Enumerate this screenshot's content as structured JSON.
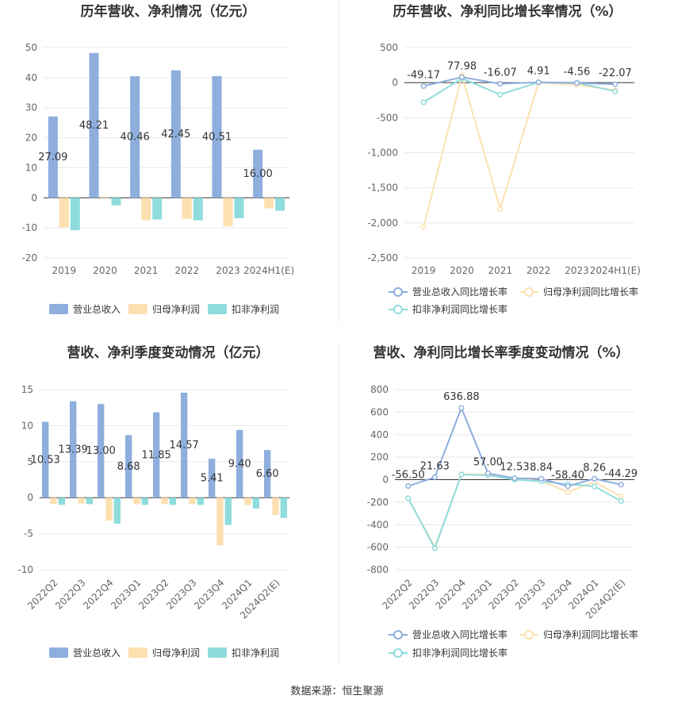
{
  "source": "数据来源：恒生聚源",
  "colors": {
    "revenue": "#8eaedd",
    "net_profit": "#fde0b0",
    "deducted": "#8fdcdc",
    "axis": "#333333",
    "grid": "#e8e8e8",
    "tick": "#666666"
  },
  "chart_data": [
    {
      "id": "annual-amount",
      "type": "bar",
      "title": "历年营收、净利情况（亿元）",
      "categories": [
        "2019",
        "2020",
        "2021",
        "2022",
        "2023",
        "2024H1(E)"
      ],
      "ylim": [
        -20,
        50
      ],
      "yticks": [
        50,
        40,
        30,
        20,
        10,
        0,
        -10,
        -20
      ],
      "series": [
        {
          "name": "营业总收入",
          "values": [
            27.09,
            48.21,
            40.46,
            42.45,
            40.51,
            16.0
          ],
          "labels": [
            "27.09",
            "48.21",
            "40.46",
            "42.45",
            "40.51",
            "16.00"
          ]
        },
        {
          "name": "归母净利润",
          "values": [
            -9.8,
            0.3,
            -7.5,
            -7.0,
            -9.5,
            -3.5
          ]
        },
        {
          "name": "扣非净利润",
          "values": [
            -10.8,
            -2.5,
            -7.2,
            -7.5,
            -6.8,
            -4.3
          ]
        }
      ]
    },
    {
      "id": "annual-growth",
      "type": "line",
      "title": "历年营收、净利同比增长率情况（%）",
      "categories": [
        "2019",
        "2020",
        "2021",
        "2022",
        "2023",
        "2024H1(E)"
      ],
      "ylim": [
        -2500,
        500
      ],
      "yticks": [
        500,
        0,
        -500,
        -1000,
        -1500,
        -2000,
        -2500
      ],
      "ytick_labels": [
        "500",
        "0",
        "-500",
        "-1,000",
        "-1,500",
        "-2,000",
        "-2,500"
      ],
      "series": [
        {
          "name": "营业总收入同比增长率",
          "values": [
            -49.17,
            77.98,
            -16.07,
            4.91,
            -4.56,
            -22.07
          ],
          "labels": [
            "-49.17",
            "77.98",
            "-16.07",
            "4.91",
            "-4.56",
            "-22.07"
          ]
        },
        {
          "name": "归母净利润同比增长率",
          "values": [
            -2060,
            100,
            -1800,
            0,
            -30,
            -110
          ]
        },
        {
          "name": "扣非净利润同比增长率",
          "values": [
            -280,
            60,
            -170,
            5,
            0,
            -125
          ]
        }
      ]
    },
    {
      "id": "quarterly-amount",
      "type": "bar",
      "title": "营收、净利季度变动情况（亿元）",
      "categories": [
        "2022Q2",
        "2022Q3",
        "2022Q4",
        "2023Q1",
        "2023Q2",
        "2023Q3",
        "2023Q4",
        "2024Q1",
        "2024Q2(E)"
      ],
      "ylim": [
        -10,
        15
      ],
      "yticks": [
        15,
        10,
        5,
        0,
        -5,
        -10
      ],
      "series": [
        {
          "name": "营业总收入",
          "values": [
            10.53,
            13.39,
            13.0,
            8.68,
            11.85,
            14.57,
            5.41,
            9.4,
            6.6
          ],
          "labels": [
            "10.53",
            "13.39",
            "13.00",
            "8.68",
            "11.85",
            "14.57",
            "5.41",
            "9.40",
            "6.60"
          ]
        },
        {
          "name": "归母净利润",
          "values": [
            -0.9,
            -0.8,
            -3.2,
            -0.9,
            -0.9,
            -0.9,
            -6.6,
            -1.0,
            -2.4
          ]
        },
        {
          "name": "扣非净利润",
          "values": [
            -1.0,
            -0.9,
            -3.6,
            -1.0,
            -1.0,
            -1.0,
            -3.8,
            -1.5,
            -2.8
          ]
        }
      ]
    },
    {
      "id": "quarterly-growth",
      "type": "line",
      "title": "营收、净利同比增长率季度变动情况（%）",
      "categories": [
        "2022Q2",
        "2022Q3",
        "2022Q4",
        "2023Q1",
        "2023Q2",
        "2023Q3",
        "2023Q4",
        "2024Q1",
        "2024Q2(E)"
      ],
      "ylim": [
        -800,
        800
      ],
      "yticks": [
        800,
        600,
        400,
        200,
        0,
        -200,
        -400,
        -600,
        -800
      ],
      "series": [
        {
          "name": "营业总收入同比增长率",
          "values": [
            -56.5,
            21.63,
            636.88,
            57.0,
            12.53,
            8.84,
            -58.4,
            8.26,
            -44.29
          ],
          "labels": [
            "-56.50",
            "21.63",
            "636.88",
            "57.00",
            "12.53",
            "8.84",
            "-58.40",
            "8.26",
            "-44.29"
          ]
        },
        {
          "name": "归母净利润同比增长率",
          "values": [
            -165,
            -600,
            50,
            45,
            5,
            -10,
            -110,
            -20,
            -150
          ]
        },
        {
          "name": "扣非净利润同比增长率",
          "values": [
            -165,
            -610,
            45,
            40,
            0,
            -15,
            -40,
            -60,
            -190
          ]
        }
      ]
    }
  ]
}
